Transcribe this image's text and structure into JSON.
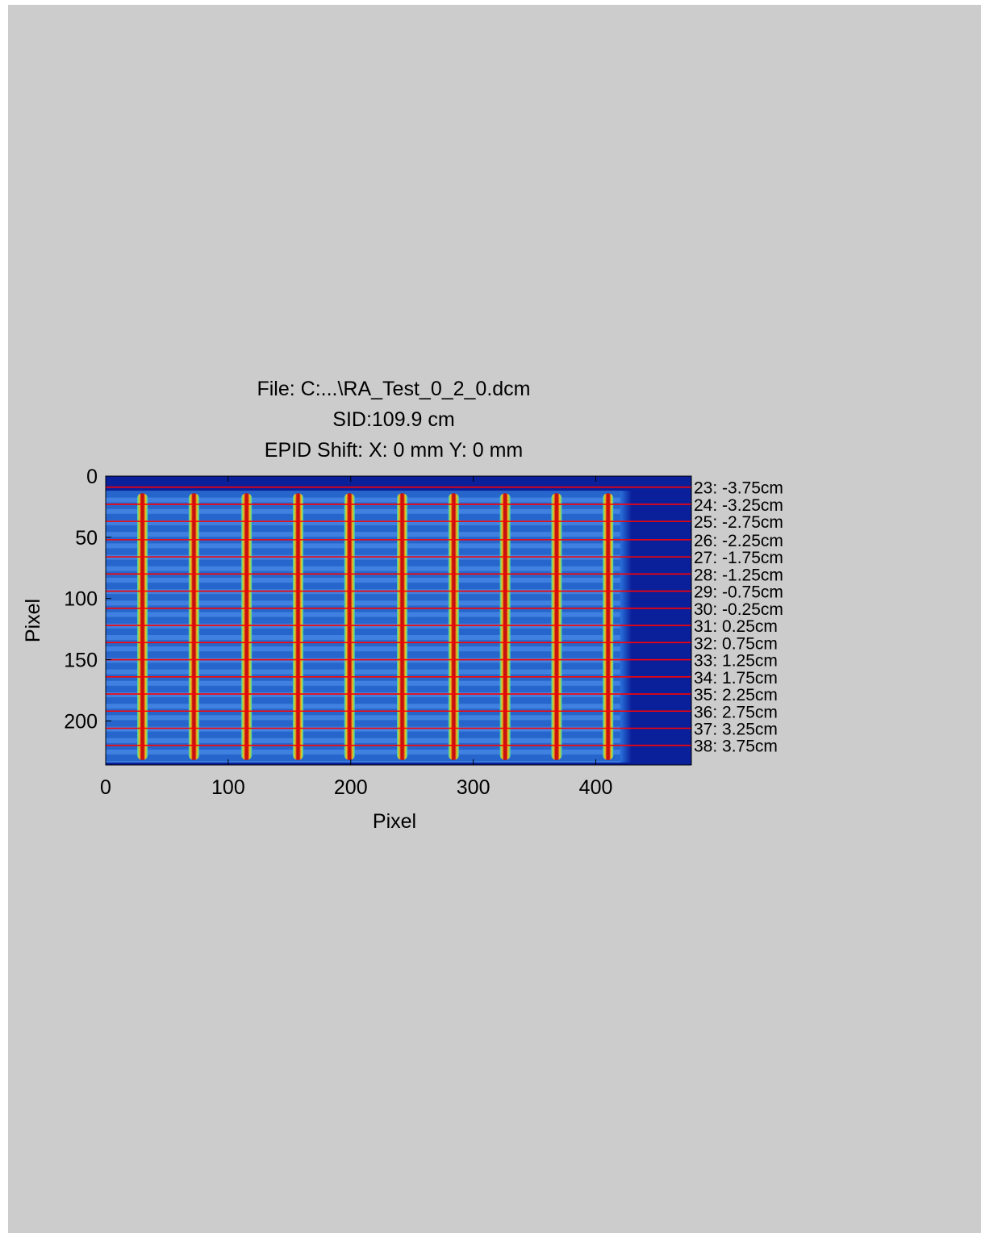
{
  "chart_data": {
    "type": "heatmap",
    "title": [
      "File: C:...\\RA_Test_0_2_0.dcm",
      "SID:109.9 cm",
      "EPID Shift:  X: 0 mm Y: 0 mm"
    ],
    "xlabel": "Pixel",
    "ylabel": "Pixel",
    "xlim": [
      0,
      478
    ],
    "ylim": [
      0,
      236
    ],
    "y_reversed": true,
    "colormap": "jet",
    "xticks": [
      0,
      100,
      200,
      300,
      400
    ],
    "yticks": [
      0,
      50,
      100,
      150,
      200
    ],
    "strip_x_centers": [
      30,
      72,
      115,
      157,
      199,
      242,
      284,
      326,
      368,
      410
    ],
    "strip_y_range": [
      14,
      232
    ],
    "field_right_edge": 420,
    "leaf_lines": [
      {
        "y": 9,
        "label": "23: -3.75cm"
      },
      {
        "y": 23,
        "label": "24: -3.25cm"
      },
      {
        "y": 37,
        "label": "25: -2.75cm"
      },
      {
        "y": 52,
        "label": "26: -2.25cm"
      },
      {
        "y": 66,
        "label": "27: -1.75cm"
      },
      {
        "y": 80,
        "label": "28: -1.25cm"
      },
      {
        "y": 94,
        "label": "29: -0.75cm"
      },
      {
        "y": 108,
        "label": "30: -0.25cm"
      },
      {
        "y": 122,
        "label": "31: 0.25cm"
      },
      {
        "y": 136,
        "label": "32: 0.75cm"
      },
      {
        "y": 150,
        "label": "33: 1.25cm"
      },
      {
        "y": 164,
        "label": "34: 1.75cm"
      },
      {
        "y": 178,
        "label": "35: 2.25cm"
      },
      {
        "y": 192,
        "label": "36: 2.75cm"
      },
      {
        "y": 206,
        "label": "37: 3.25cm"
      },
      {
        "y": 220,
        "label": "38: 3.75cm"
      }
    ],
    "colors": {
      "figure_background": "#cccccc",
      "image_background": "#0a1f9a",
      "field": "#2a72dd",
      "strip_edge": "#33d6b0",
      "strip_mid": "#f2c21a",
      "strip_core": "#c81010",
      "leaf_line": "#ff0000"
    }
  }
}
